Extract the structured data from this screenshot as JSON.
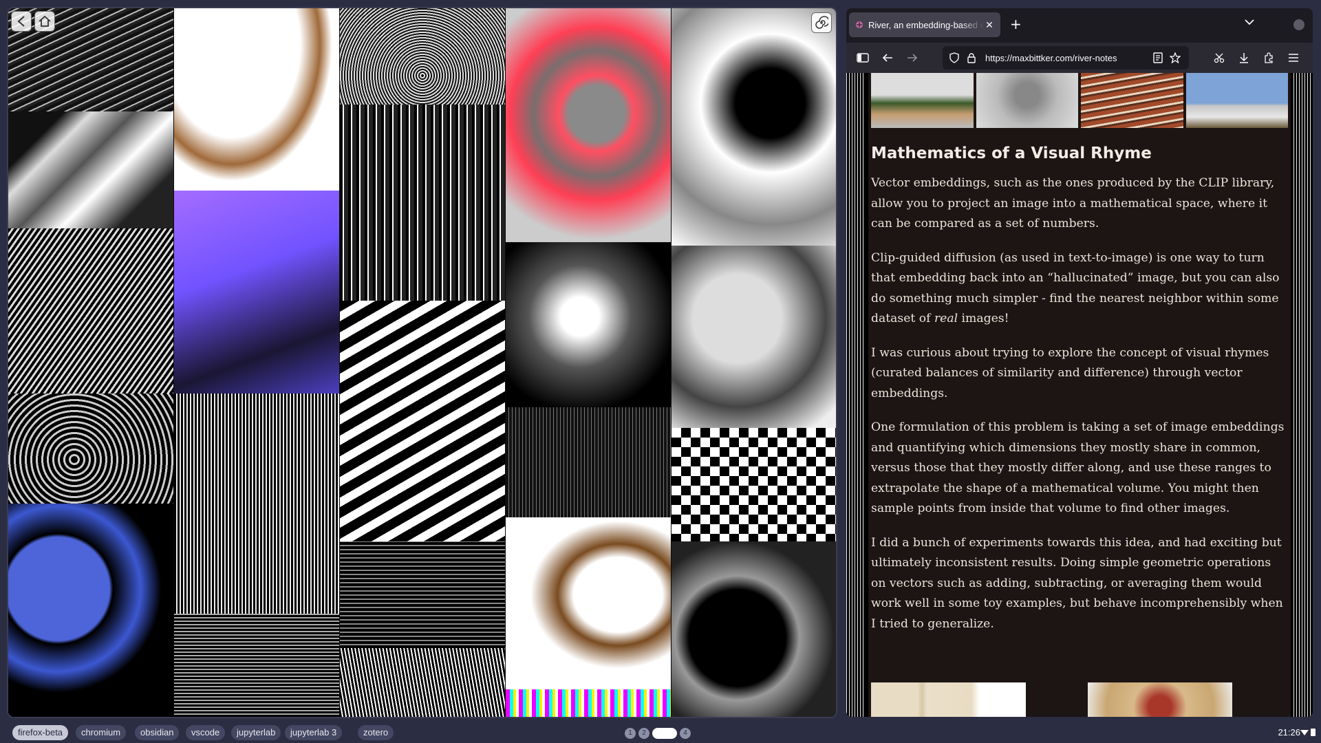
{
  "river": {
    "tiles": [
      {
        "name": "tile-wavy-lines",
        "bg": "repeating-linear-gradient(155deg,#111 0 5px,#bbb 5px 7px,#222 7px 11px)"
      },
      {
        "name": "tile-burnt-paper",
        "bg": "radial-gradient(ellipse at 35% 20%,#fff 0 45%,#a06a3a 58%,#fff 66%)"
      },
      {
        "name": "tile-halftone-top",
        "bg": "repeating-radial-gradient(circle at 50% 70%,#111 0 2px,#ddd 2px 4px)"
      },
      {
        "name": "tile-pink-explosion",
        "bg": "radial-gradient(circle at 55% 45%,#8a8a8a 0 18%,#ff4f62 24%,#7a6e6e 40%,#ff3f55 55%,#ccc 80%)"
      },
      {
        "name": "tile-hex-pattern",
        "bg": "radial-gradient(circle at 60% 40%,#000 0 20%,#fff 40%,#888 70%,#fff 100%)"
      },
      {
        "name": "tile-abstract-shapes",
        "bg": "linear-gradient(135deg,#111 0 20%,#ddd 30%,#555 45%,#fff 60%,#222 80%)"
      },
      {
        "name": "tile-purple-gradient",
        "bg": "linear-gradient(160deg,#a46cff 0%,#7153ff 40%,#1a1633 75%,#4c3fbf 100%)"
      },
      {
        "name": "tile-glitch-face",
        "bg": "repeating-linear-gradient(90deg,#000 0 3px,#eee 3px 5px),#444"
      },
      {
        "name": "tile-dot-face",
        "bg": "radial-gradient(circle at 45% 45%,#fff 0 15%,#555 40%,#000 75%)"
      },
      {
        "name": "tile-cloud-halftone",
        "bg": "radial-gradient(circle at 40% 40%,#ddd 0 30%,#444 60%,#eee 90%)"
      },
      {
        "name": "tile-striped-body",
        "bg": "repeating-linear-gradient(125deg,#000 0 4px,#ddd 4px 7px)"
      },
      {
        "name": "tile-diagonal-stripes",
        "bg": "repeating-linear-gradient(150deg,#000 0 14px,#fff 14px 26px)"
      },
      {
        "name": "tile-barcode-glitch",
        "bg": "repeating-linear-gradient(90deg,#000 0 4px,#fff 4px 6px,#222 6px 12px)"
      },
      {
        "name": "tile-houndstooth",
        "bg": "repeating-conic-gradient(#000 0 25%,#fff 0 50%) 0 0/28px 28px"
      },
      {
        "name": "tile-wire-mesh",
        "bg": "repeating-linear-gradient(90deg,#111 0 4px,#777 4px 5px),#222"
      },
      {
        "name": "tile-swirl-distort",
        "bg": "repeating-radial-gradient(circle at 40% 60%,#000 0 5px,#ccc 5px 8px)"
      },
      {
        "name": "tile-melting-glitch",
        "bg": "repeating-linear-gradient(0deg,#000 0 4px,#888 4px 6px)"
      },
      {
        "name": "tile-burnt-hole",
        "bg": "radial-gradient(ellipse at 68% 45%,#fff 0 28%,#7a4b20 38%,#fff 55%)"
      },
      {
        "name": "tile-dark-glitch-arc",
        "bg": "radial-gradient(circle at 40% 55%,#000 0 35%,#999 45%,#222 70%)"
      },
      {
        "name": "tile-dotted-hand",
        "bg": "repeating-linear-gradient(165deg,#000 0 6px,#eee 6px 8px)"
      },
      {
        "name": "tile-scan-lines",
        "bg": "repeating-linear-gradient(0deg,#000 0 3px,#aaa 3px 5px)"
      },
      {
        "name": "tile-wave-glitch",
        "bg": "repeating-linear-gradient(80deg,#000 0 3px,#fff 3px 5px)"
      },
      {
        "name": "tile-rainbow-bars",
        "bg": "repeating-linear-gradient(90deg,#e0f 0 6px,#0ff 6px 11px,#fe0 11px 15px,#fff 15px 19px)"
      },
      {
        "name": "tile-blue-splash",
        "bg": "radial-gradient(circle at 30% 40%,#4d65d9 0 30%,#000 32%,#3c58d1 48%,#000 60%)"
      },
      {
        "name": "tile-dark-lines",
        "bg": "repeating-linear-gradient(90deg,#000 0 5px,#333 5px 6px)"
      }
    ]
  },
  "firefox": {
    "tab_title": "River, an embedding-based e",
    "url": "https://maxbittker.com/river-notes",
    "article": {
      "heading": "Mathematics of a Visual Rhyme",
      "p1": "Vector embeddings, such as the ones produced by the CLIP library, allow you to project an image into a mathematical space, where it can be compared as a set of numbers.",
      "p2a": "Clip-guided diffusion (as used in text-to-image) is one way to turn that embedding back into an “hallucinated” image, but you can also do something much simpler - find the nearest neighbor within some dataset of ",
      "p2em": "real",
      "p2b": " images!",
      "p3": "I was curious about trying to explore the concept of visual rhymes (curated balances of similarity and difference) through vector embeddings.",
      "p4": "One formulation of this problem is taking a set of image embeddings and quantifying which dimensions they mostly share in common, versus those that they mostly differ along, and use these ranges to extrapolate the shape of a mathematical volume. You might then sample points from inside that volume to find other images.",
      "p5": "I did a bunch of experiments towards this idea, and had exciting but ultimately inconsistent results. Doing simple geometric operations on vectors such as adding, subtracting, or averaging them would work well in some toy examples, but behave incomprehensibly when I tried to generalize."
    }
  },
  "taskbar": {
    "workspaces": [
      "firefox-beta",
      "chromium",
      "obsidian",
      "vscode",
      "jupyterlab",
      "jupyterlab 3",
      "zotero"
    ],
    "pages": [
      "1",
      "2",
      "",
      "4"
    ],
    "clock": "21:26"
  },
  "colors": {
    "accent": "#2b2d42",
    "article_bg": "#1c1513"
  }
}
